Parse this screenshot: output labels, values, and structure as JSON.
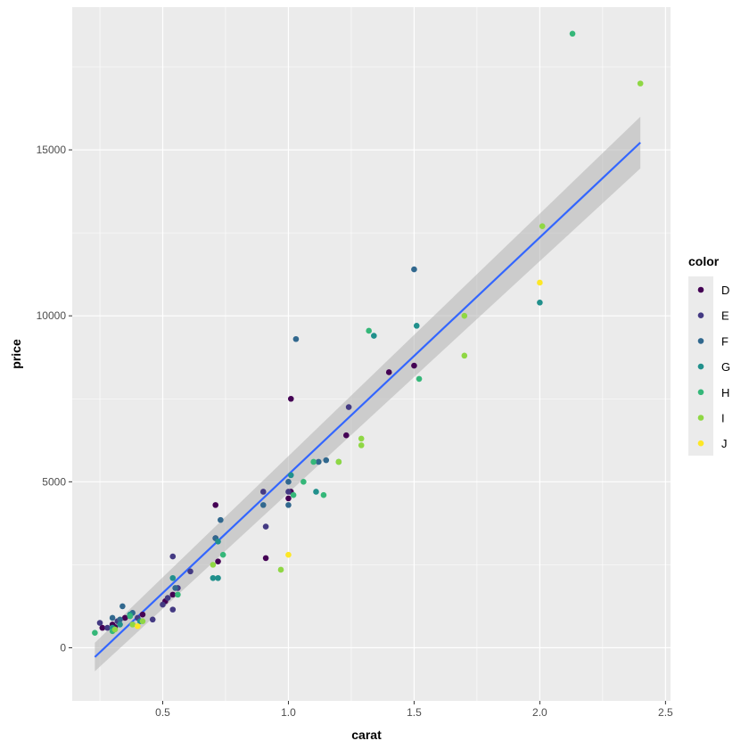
{
  "chart_data": {
    "type": "scatter",
    "xlabel": "carat",
    "ylabel": "price",
    "xlim": [
      0.14,
      2.52
    ],
    "ylim": [
      -1600,
      19300
    ],
    "x_ticks": [
      0.5,
      1.0,
      1.5,
      2.0,
      2.5
    ],
    "x_tick_labels": [
      "0.5",
      "1.0",
      "1.5",
      "2.0",
      "2.5"
    ],
    "y_ticks": [
      0,
      5000,
      10000,
      15000
    ],
    "y_tick_labels": [
      "0",
      "5000",
      "10000",
      "15000"
    ],
    "grid": true,
    "legend": {
      "title": "color",
      "position": "right"
    },
    "colors": {
      "panel": "#EBEBEB",
      "grid_major": "#FFFFFF",
      "fit_line": "#3366FF",
      "confidence_band": "#B3B3B3",
      "tick": "#333333"
    },
    "series": [
      {
        "name": "D",
        "color": "#440154",
        "points": [
          [
            0.26,
            600
          ],
          [
            0.3,
            700
          ],
          [
            0.31,
            620
          ],
          [
            0.35,
            900
          ],
          [
            0.42,
            1000
          ],
          [
            0.51,
            1400
          ],
          [
            0.54,
            1600
          ],
          [
            0.71,
            3300
          ],
          [
            0.71,
            4300
          ],
          [
            0.72,
            2600
          ],
          [
            0.91,
            2700
          ],
          [
            1.0,
            4500
          ],
          [
            1.01,
            4700
          ],
          [
            1.01,
            7500
          ],
          [
            1.23,
            6400
          ],
          [
            1.5,
            8500
          ],
          [
            1.4,
            8300
          ]
        ]
      },
      {
        "name": "E",
        "color": "#443A83",
        "points": [
          [
            0.25,
            750
          ],
          [
            0.28,
            600
          ],
          [
            0.32,
            800
          ],
          [
            0.4,
            900
          ],
          [
            0.46,
            850
          ],
          [
            0.5,
            1300
          ],
          [
            0.52,
            1500
          ],
          [
            0.54,
            1150
          ],
          [
            0.54,
            2750
          ],
          [
            0.56,
            1800
          ],
          [
            0.61,
            2300
          ],
          [
            0.9,
            4700
          ],
          [
            0.91,
            3650
          ],
          [
            1.0,
            4700
          ],
          [
            1.24,
            7250
          ]
        ]
      },
      {
        "name": "F",
        "color": "#31688E",
        "points": [
          [
            0.3,
            900
          ],
          [
            0.33,
            850
          ],
          [
            0.34,
            1250
          ],
          [
            0.38,
            1050
          ],
          [
            0.55,
            1800
          ],
          [
            0.71,
            3300
          ],
          [
            0.73,
            3850
          ],
          [
            0.9,
            4300
          ],
          [
            1.0,
            5000
          ],
          [
            1.0,
            4300
          ],
          [
            1.03,
            9300
          ],
          [
            1.12,
            5600
          ],
          [
            1.15,
            5650
          ],
          [
            1.5,
            11400
          ]
        ]
      },
      {
        "name": "G",
        "color": "#21908C",
        "points": [
          [
            0.3,
            600
          ],
          [
            0.33,
            700
          ],
          [
            0.37,
            1000
          ],
          [
            0.41,
            800
          ],
          [
            0.54,
            2100
          ],
          [
            0.7,
            2100
          ],
          [
            0.72,
            2100
          ],
          [
            0.72,
            3200
          ],
          [
            1.01,
            5200
          ],
          [
            1.11,
            4700
          ],
          [
            1.34,
            9400
          ],
          [
            1.51,
            9700
          ],
          [
            2.0,
            10400
          ]
        ]
      },
      {
        "name": "H",
        "color": "#35B779",
        "points": [
          [
            0.23,
            450
          ],
          [
            0.3,
            500
          ],
          [
            0.37,
            950
          ],
          [
            0.56,
            1600
          ],
          [
            0.74,
            2800
          ],
          [
            1.02,
            4600
          ],
          [
            1.06,
            5000
          ],
          [
            1.1,
            5600
          ],
          [
            1.14,
            4600
          ],
          [
            1.2,
            5600
          ],
          [
            1.32,
            9550
          ],
          [
            1.52,
            8100
          ],
          [
            2.13,
            18500
          ]
        ]
      },
      {
        "name": "I",
        "color": "#8FD744",
        "points": [
          [
            0.31,
            550
          ],
          [
            0.38,
            700
          ],
          [
            0.42,
            800
          ],
          [
            0.7,
            2500
          ],
          [
            0.97,
            2350
          ],
          [
            1.2,
            5600
          ],
          [
            1.29,
            6300
          ],
          [
            1.29,
            6100
          ],
          [
            1.7,
            10000
          ],
          [
            1.7,
            8800
          ],
          [
            2.01,
            12700
          ],
          [
            2.4,
            17000
          ]
        ]
      },
      {
        "name": "J",
        "color": "#FDE725",
        "points": [
          [
            0.4,
            650
          ],
          [
            1.0,
            2800
          ],
          [
            2.0,
            11000
          ]
        ]
      }
    ],
    "fit": {
      "method": "lm",
      "x_range": [
        0.23,
        2.4
      ],
      "y_at_min": -280,
      "y_at_max": 15220,
      "band_halfwidth_at_min": 430,
      "band_halfwidth_at_max": 780
    }
  }
}
